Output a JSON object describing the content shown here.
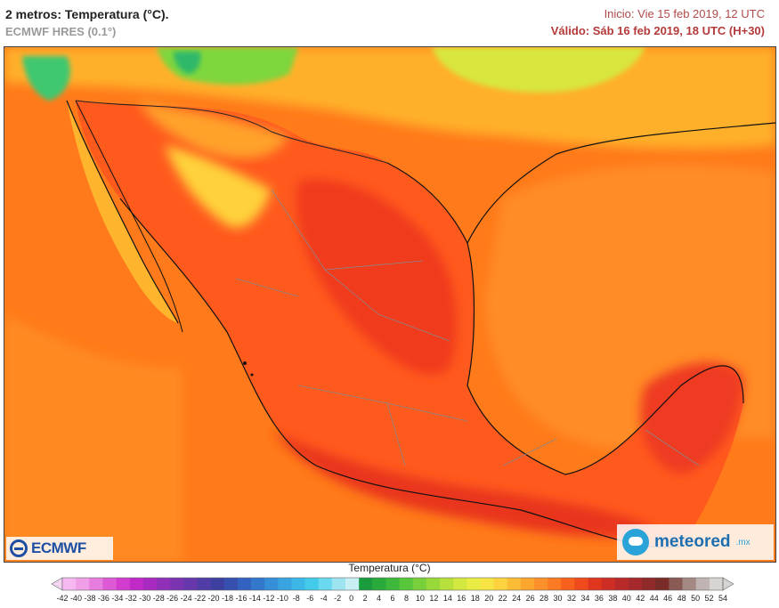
{
  "header": {
    "title": "2 metros: Temperatura (°C).",
    "model": "ECMWF HRES (0.1°)",
    "start": "Inicio: Vie 15 feb 2019, 12 UTC",
    "valid": "Válido: Sáb 16 feb 2019, 18 UTC (H+30)"
  },
  "logos": {
    "ecmwf": "ECMWF",
    "meteored": "meteored",
    "meteored_tld": ".mx"
  },
  "legend": {
    "title": "Temperatura (°C)",
    "ticks": [
      "-42",
      "-40",
      "-38",
      "-36",
      "-34",
      "-32",
      "-30",
      "-28",
      "-26",
      "-24",
      "-22",
      "-20",
      "-18",
      "-16",
      "-14",
      "-12",
      "-10",
      "-8",
      "-6",
      "-4",
      "-2",
      "0",
      "2",
      "4",
      "6",
      "8",
      "10",
      "12",
      "14",
      "16",
      "18",
      "20",
      "22",
      "24",
      "26",
      "28",
      "30",
      "32",
      "34",
      "36",
      "38",
      "40",
      "42",
      "44",
      "46",
      "48",
      "50",
      "52",
      "54"
    ],
    "colors": [
      "#f5b8f0",
      "#f09ee8",
      "#e77ddf",
      "#dd5ad6",
      "#d23ccf",
      "#c22ac8",
      "#a92ac0",
      "#9030b8",
      "#7a34b2",
      "#6638ac",
      "#523ca6",
      "#3e40a0",
      "#3650b0",
      "#3462c0",
      "#3478cc",
      "#368ed8",
      "#38a4e0",
      "#3cb8e6",
      "#44cbea",
      "#6ad8ee",
      "#9ee4f0",
      "#c8f0f4",
      "#1a9c3c",
      "#2aaa3a",
      "#3eb83a",
      "#58c63a",
      "#78d03a",
      "#98d83a",
      "#b8e03c",
      "#d2e840",
      "#e8ec44",
      "#f6e444",
      "#fcd23e",
      "#fcbc36",
      "#fca630",
      "#fc902a",
      "#fc7a24",
      "#f8601e",
      "#ee4a1c",
      "#e0361e",
      "#cc2e26",
      "#b82a2a",
      "#a4282c",
      "#8e2a2a",
      "#7a2c28",
      "#8a5a54",
      "#a48884",
      "#c0b4b2",
      "#d8d4d2"
    ]
  },
  "map": {
    "ocean_color": "#ff7a1a",
    "hot_color": "#f03a1e",
    "warm_color": "#ff5a1e",
    "mild_color": "#ffa22a",
    "cool_color": "#ffd23a",
    "cold_color": "#c8e43a",
    "coldest_color": "#40c870"
  }
}
